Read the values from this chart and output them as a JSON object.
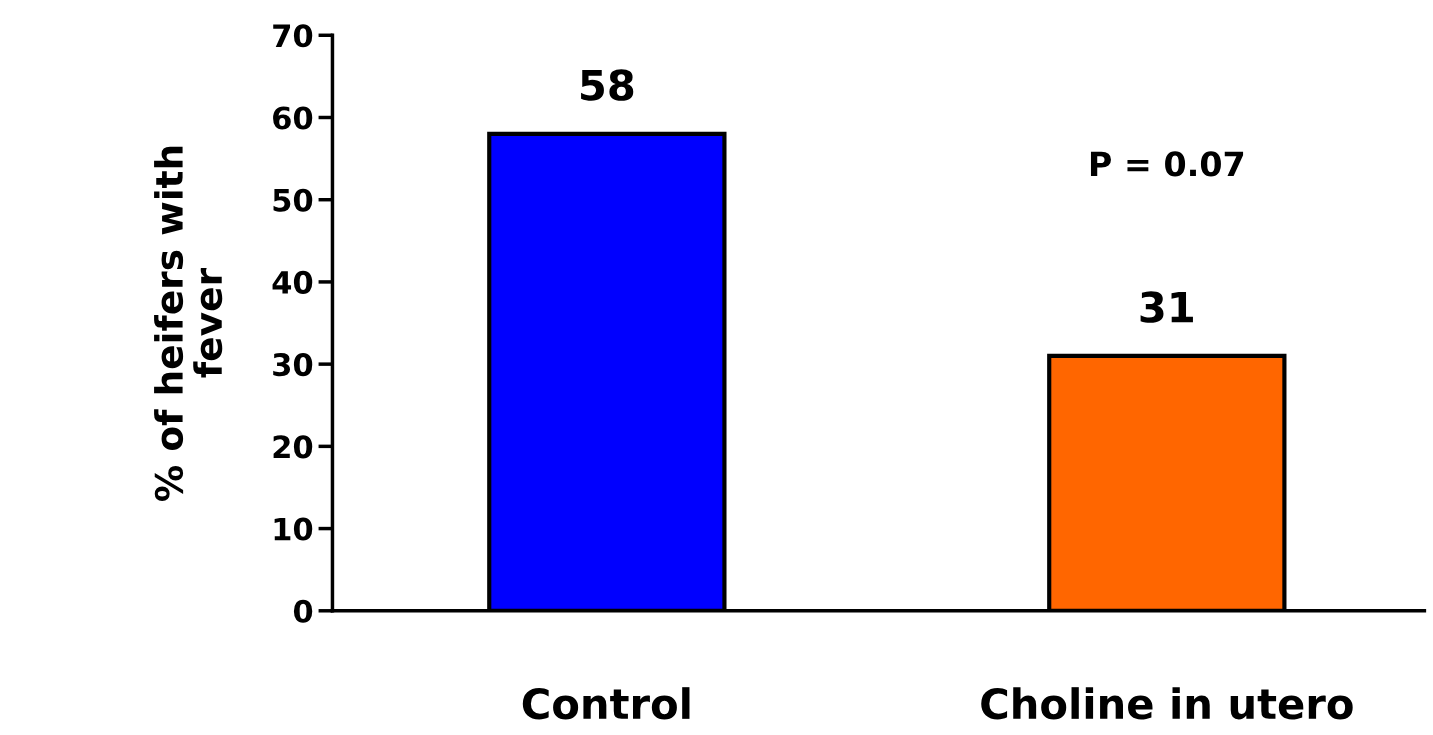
{
  "chart_data": {
    "type": "bar",
    "categories": [
      "Control",
      "Choline in utero"
    ],
    "values": [
      58,
      31
    ],
    "colors": [
      "#0000ff",
      "#ff6600"
    ],
    "ylabel": "% of heifers with\nfever",
    "ylim": [
      0,
      70
    ],
    "yticks": [
      0,
      10,
      20,
      30,
      40,
      50,
      60,
      70
    ],
    "data_labels": true,
    "grid": false,
    "legend": false,
    "annotations": [
      "P = 0.07"
    ]
  }
}
